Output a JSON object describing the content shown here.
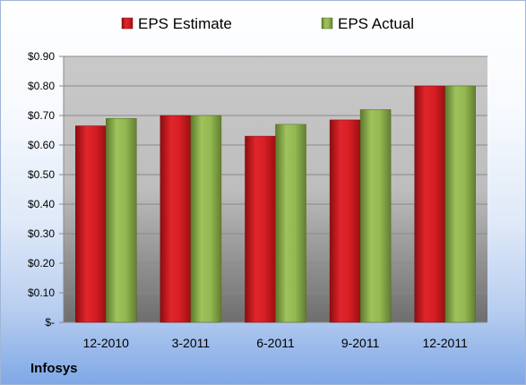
{
  "company": "Infosys",
  "colors": {
    "estimate": "#c8151b",
    "actual": "#8db04f"
  },
  "chart_data": {
    "type": "bar",
    "categories": [
      "12-2010",
      "3-2011",
      "6-2011",
      "9-2011",
      "12-2011"
    ],
    "series": [
      {
        "name": "EPS Estimate",
        "values": [
          0.665,
          0.7,
          0.63,
          0.685,
          0.8
        ]
      },
      {
        "name": "EPS Actual",
        "values": [
          0.69,
          0.7,
          0.67,
          0.72,
          0.8
        ]
      }
    ],
    "yticks": [
      {
        "value": 0.9,
        "label": "$0.90"
      },
      {
        "value": 0.8,
        "label": "$0.80"
      },
      {
        "value": 0.7,
        "label": "$0.70"
      },
      {
        "value": 0.6,
        "label": "$0.60"
      },
      {
        "value": 0.5,
        "label": "$0.50"
      },
      {
        "value": 0.4,
        "label": "$0.40"
      },
      {
        "value": 0.3,
        "label": "$0.30"
      },
      {
        "value": 0.2,
        "label": "$0.20"
      },
      {
        "value": 0.1,
        "label": "$0.10"
      },
      {
        "value": 0.0,
        "label": "$-"
      }
    ],
    "ylim": [
      0,
      0.9
    ],
    "grid": true,
    "legend_position": "top"
  }
}
